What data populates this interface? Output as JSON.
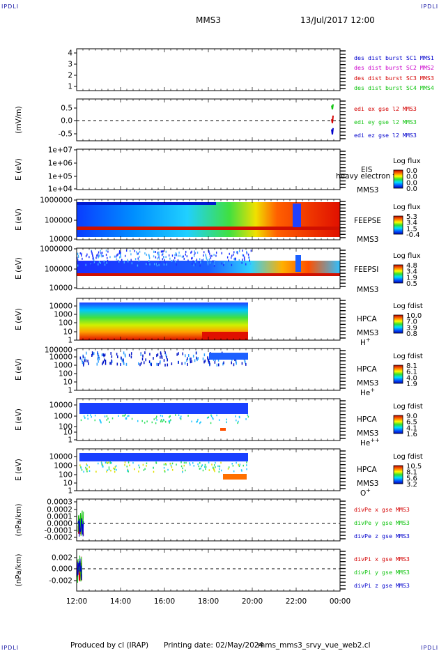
{
  "page": {
    "corner_label": "IPDLI",
    "title": "MMS3",
    "datetime": "13/Jul/2017 12:00",
    "footer_producer": "Produced by cl (IRAP)",
    "footer_printing": "Printing date: 02/May/2024",
    "footer_file": "mms_mms3_srvy_vue_web2.cl"
  },
  "colors": {
    "red": "#d40000",
    "green": "#11c411",
    "blue": "#0000cc",
    "magenta": "#cc00cc"
  },
  "chart_data": [
    {
      "type": "line",
      "id": "sc-positions",
      "yticks": [
        "4",
        "3",
        "2",
        "1"
      ],
      "ylim": [
        0.5,
        4.5
      ],
      "ylabel": "",
      "series": [
        {
          "name": "des dist burst SC1 MMS1",
          "color": "#0000cc"
        },
        {
          "name": "des dist burst SC2 MMS2",
          "color": "#cc00cc"
        },
        {
          "name": "des dist burst SC3 MMS3",
          "color": "#d40000"
        },
        {
          "name": "des dist burst SC4 MMS4",
          "color": "#11c411"
        }
      ]
    },
    {
      "type": "line",
      "id": "edi-efield",
      "ylabel": "(mV/m)",
      "yticks": [
        "0.5",
        "0.0",
        "-0.5"
      ],
      "ylim": [
        -0.8,
        0.8
      ],
      "series": [
        {
          "name": "edi ex gse l2 MMS3",
          "color": "#d40000",
          "x": [
            "23:46",
            "23:48",
            "23:50"
          ],
          "values": [
            0.05,
            -0.1,
            0.2
          ]
        },
        {
          "name": "edi ey gse l2 MMS3",
          "color": "#11c411",
          "x": [
            "23:46",
            "23:48",
            "23:50"
          ],
          "values": [
            0.6,
            0.45,
            0.65
          ]
        },
        {
          "name": "edi ez gse l2 MMS3",
          "color": "#0000cc",
          "x": [
            "23:46",
            "23:48",
            "23:50"
          ],
          "values": [
            -0.35,
            -0.55,
            -0.3
          ]
        }
      ]
    },
    {
      "type": "heatmap",
      "id": "eis",
      "ylabel": "E (eV)",
      "yticks": [
        "1e+07",
        "1e+06",
        "1e+05",
        "1e+04"
      ],
      "label_top": "EIS",
      "label_bottom": "MMS3",
      "overlay_text": "heavy electron to",
      "colorbar_title": "Log flux",
      "colorbar_ticks": [
        "0.0",
        "0.0",
        "0.0",
        "0.0"
      ]
    },
    {
      "type": "heatmap",
      "id": "feepse",
      "ylabel": "E (eV)",
      "yticks": [
        "1000000",
        "100000",
        "10000"
      ],
      "label_top": "FEEPSE",
      "label_bottom": "MMS3",
      "colorbar_title": "Log flux",
      "colorbar_ticks": [
        "5.3",
        "3.4",
        "1.5",
        "-0.4"
      ]
    },
    {
      "type": "heatmap",
      "id": "feepsi",
      "ylabel": "E (eV)",
      "yticks": [
        "1000000",
        "100000",
        "10000"
      ],
      "label_top": "FEEPSI",
      "label_bottom": "MMS3",
      "colorbar_title": "Log flux",
      "colorbar_ticks": [
        "4.8",
        "3.4",
        "1.9",
        "0.5"
      ]
    },
    {
      "type": "heatmap",
      "id": "hpca-h",
      "ylabel": "E (eV)",
      "yticks": [
        "10000",
        "1000",
        "100",
        "10",
        "1"
      ],
      "label_top": "HPCA",
      "label_bottom": "MMS3",
      "species": "H",
      "charge": "+",
      "colorbar_title": "Log fdist",
      "colorbar_ticks": [
        "10.0",
        "7.0",
        "3.9",
        "0.8"
      ]
    },
    {
      "type": "heatmap",
      "id": "hpca-he",
      "ylabel": "E (eV)",
      "yticks": [
        "100000",
        "10000",
        "1000",
        "100",
        "10",
        "1"
      ],
      "label_top": "HPCA",
      "label_bottom": "MMS3",
      "species": "He",
      "charge": "+",
      "colorbar_title": "Log fdist",
      "colorbar_ticks": [
        "8.1",
        "6.1",
        "4.0",
        "1.9"
      ]
    },
    {
      "type": "heatmap",
      "id": "hpca-hepp",
      "ylabel": "E (eV)",
      "yticks": [
        "10000",
        "1000",
        "100",
        "10",
        "1"
      ],
      "label_top": "HPCA",
      "label_bottom": "MMS3",
      "species": "He",
      "charge": "++",
      "colorbar_title": "Log fdist",
      "colorbar_ticks": [
        "9.0",
        "6.5",
        "4.1",
        "1.6"
      ]
    },
    {
      "type": "heatmap",
      "id": "hpca-o",
      "ylabel": "E (eV)",
      "yticks": [
        "10000",
        "1000",
        "100",
        "10",
        "1"
      ],
      "label_top": "HPCA",
      "label_bottom": "MMS3",
      "species": "O",
      "charge": "+",
      "colorbar_title": "Log fdist",
      "colorbar_ticks": [
        "10.5",
        "8.1",
        "5.6",
        "3.2"
      ]
    },
    {
      "type": "line",
      "id": "divpe",
      "ylabel": "(nPa/km)",
      "yticks": [
        "0.0003",
        "0.0002",
        "0.0001",
        "0.0000",
        "-0.0001",
        "-0.0002"
      ],
      "ylim": [
        -0.00025,
        0.0003
      ],
      "series": [
        {
          "name": "divPe x gse MMS3",
          "color": "#d40000"
        },
        {
          "name": "divPe y gse MMS3",
          "color": "#11c411"
        },
        {
          "name": "divPe z gse MMS3",
          "color": "#0000cc"
        }
      ]
    },
    {
      "type": "line",
      "id": "divpi",
      "ylabel": "(nPa/km)",
      "yticks": [
        "0.002",
        "0.000",
        "-0.002"
      ],
      "ylim": [
        -0.0035,
        0.003
      ],
      "series": [
        {
          "name": "divPi x gse MMS3",
          "color": "#d40000"
        },
        {
          "name": "divPi y gse MMS3",
          "color": "#11c411"
        },
        {
          "name": "divPi z gse MMS3",
          "color": "#0000cc"
        }
      ]
    }
  ],
  "x_axis": {
    "ticks": [
      "12:00",
      "14:00",
      "16:00",
      "18:00",
      "20:00",
      "22:00",
      "00:00"
    ]
  }
}
